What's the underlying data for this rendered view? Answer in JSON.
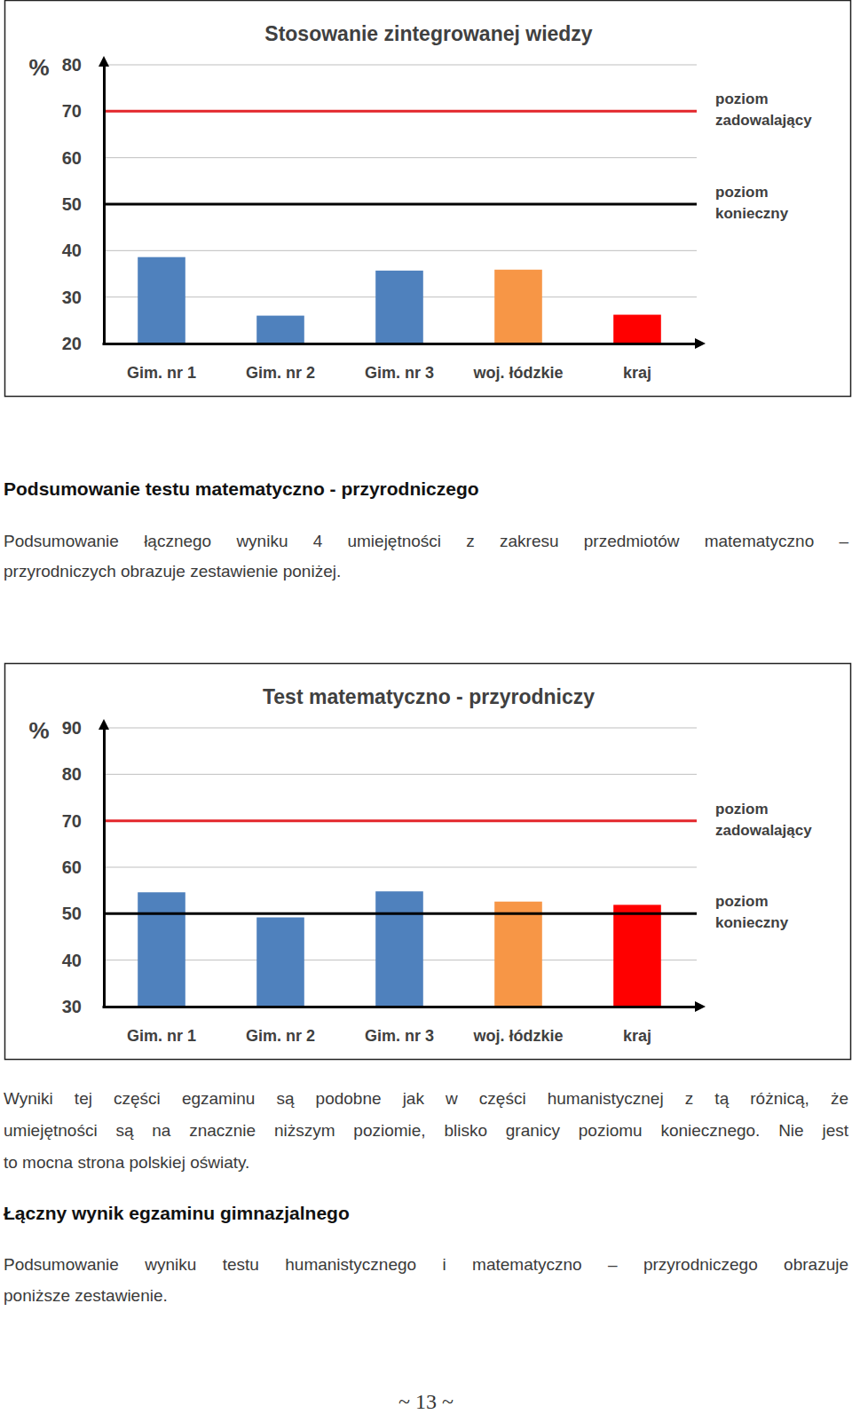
{
  "chart_data": [
    {
      "type": "bar",
      "title": "Stosowanie zintegrowanej wiedzy",
      "ylabel": "%",
      "categories": [
        "Gim. nr 1",
        "Gim. nr 2",
        "Gim. nr 3",
        "woj. łódzkie",
        "kraj"
      ],
      "values": [
        38.6,
        26,
        35.7,
        35.9,
        26.2
      ],
      "colors": [
        "#4f81bd",
        "#4f81bd",
        "#4f81bd",
        "#f79646",
        "#ff0000"
      ],
      "ylim": [
        20,
        80
      ],
      "yticks": [
        20,
        30,
        40,
        50,
        60,
        70,
        80
      ],
      "grid": true,
      "reference_lines": [
        {
          "value": 70,
          "label": "poziom zadowalający",
          "color": "#e3262b"
        },
        {
          "value": 50,
          "label": "poziom konieczny",
          "color": "#000000"
        }
      ]
    },
    {
      "type": "bar",
      "title": "Test matematyczno - przyrodniczy",
      "ylabel": "%",
      "categories": [
        "Gim. nr 1",
        "Gim. nr 2",
        "Gim. nr 3",
        "woj. łódzkie",
        "kraj"
      ],
      "values": [
        54.6,
        49.2,
        54.8,
        52.6,
        51.9
      ],
      "colors": [
        "#4f81bd",
        "#4f81bd",
        "#4f81bd",
        "#f79646",
        "#ff0000"
      ],
      "ylim": [
        30,
        90
      ],
      "yticks": [
        30,
        40,
        50,
        60,
        70,
        80,
        90
      ],
      "grid": true,
      "reference_lines": [
        {
          "value": 70,
          "label": "poziom zadowalający",
          "color": "#e3262b"
        },
        {
          "value": 50,
          "label": "poziom konieczny",
          "color": "#000000"
        }
      ]
    }
  ],
  "document": {
    "heading_1": "Podsumowanie testu matematyczno - przyrodniczego",
    "paragraph_1": [
      "Podsumowanie łącznego wyniku 4 umiejętności z zakresu przedmiotów matematyczno –",
      "przyrodniczych obrazuje zestawienie poniżej."
    ],
    "paragraph_2": [
      "Wyniki tej części egzaminu są podobne jak w części humanistycznej z tą różnicą, że",
      "umiejętności są na znacznie niższym poziomie, blisko granicy poziomu koniecznego. Nie jest",
      "to mocna strona polskiej oświaty."
    ],
    "heading_2": "Łączny wynik egzaminu gimnazjalnego",
    "paragraph_3": [
      "Podsumowanie wyniku testu humanistycznego i matematyczno – przyrodniczego obrazuje",
      "poniższe zestawienie."
    ],
    "page_number": "~ 13 ~"
  }
}
